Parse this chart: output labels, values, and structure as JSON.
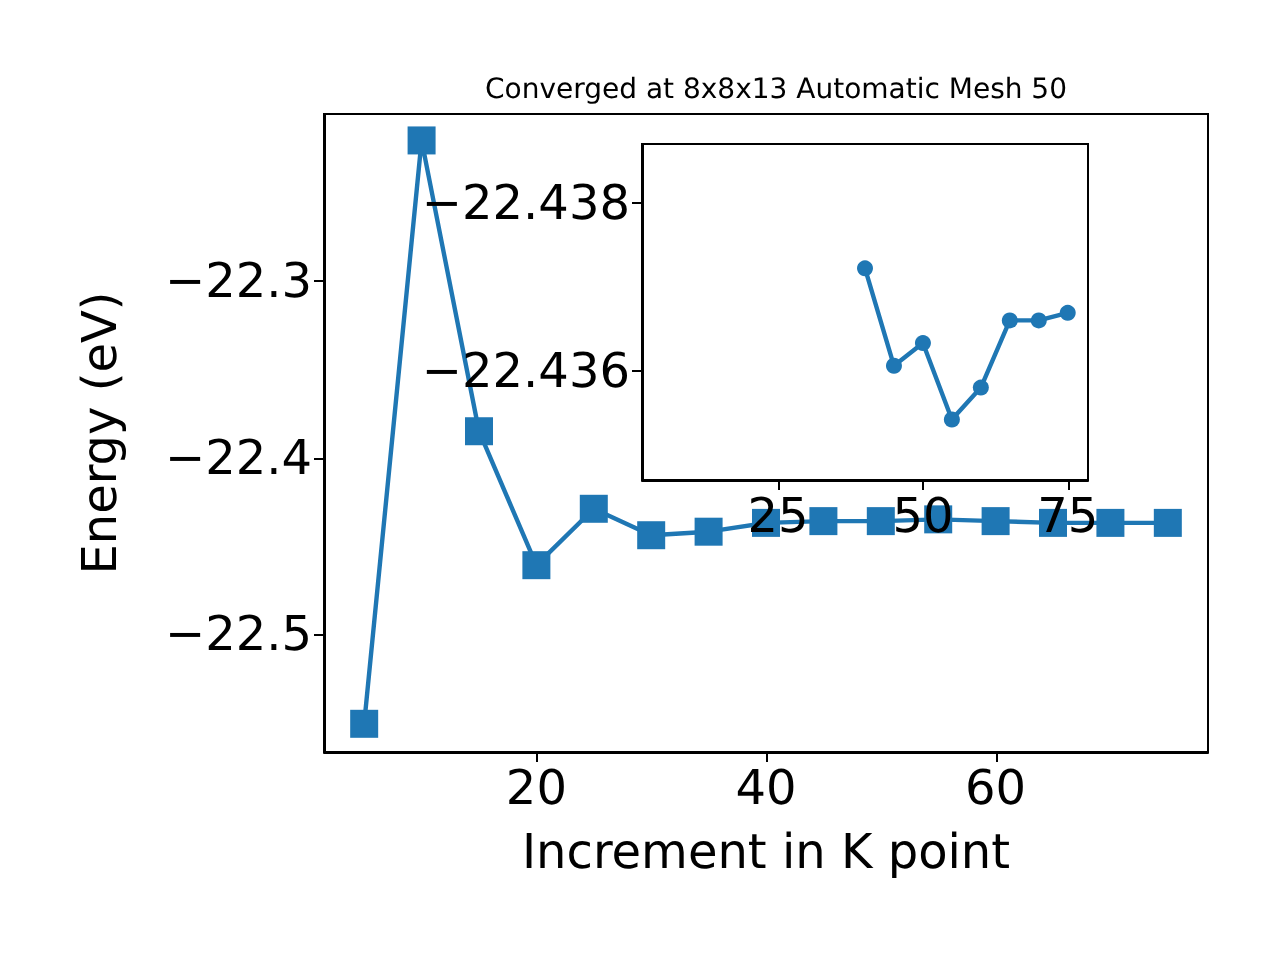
{
  "chart_data": [
    {
      "type": "line",
      "title": "Converged at 8x8x13 Automatic Mesh 50",
      "xlabel": "Increment in K point",
      "ylabel": "Energy (eV)",
      "x": [
        5,
        10,
        15,
        20,
        25,
        30,
        35,
        40,
        45,
        50,
        55,
        60,
        65,
        70,
        75
      ],
      "series": [
        {
          "color": "#1f77b4",
          "values": [
            -22.551,
            -22.22,
            -22.385,
            -22.461,
            -22.429,
            -22.444,
            -22.442,
            -22.437,
            -22.436,
            -22.436,
            -22.435,
            -22.436,
            -22.437,
            -22.437,
            -22.437
          ]
        }
      ],
      "xlim": [
        1.5,
        78.5
      ],
      "xticks": [
        20,
        40,
        60
      ],
      "ylim": [
        -22.567,
        -22.205
      ],
      "yticks": [
        -22.5,
        -22.4,
        -22.3
      ],
      "marker": "square",
      "grid": false
    },
    {
      "type": "line",
      "x": [
        40,
        45,
        50,
        55,
        60,
        65,
        70,
        75
      ],
      "series": [
        {
          "color": "#1f77b4",
          "values": [
            -22.43722,
            -22.43606,
            -22.43633,
            -22.43542,
            -22.4358,
            -22.4366,
            -22.4366,
            -22.43669
          ]
        }
      ],
      "xlim": [
        1.5,
        78.5
      ],
      "xticks": [
        25,
        50,
        75
      ],
      "ylim": [
        -22.4347,
        -22.4387
      ],
      "yticks": [
        -22.438,
        -22.436
      ],
      "marker": "circle",
      "grid": false
    }
  ]
}
